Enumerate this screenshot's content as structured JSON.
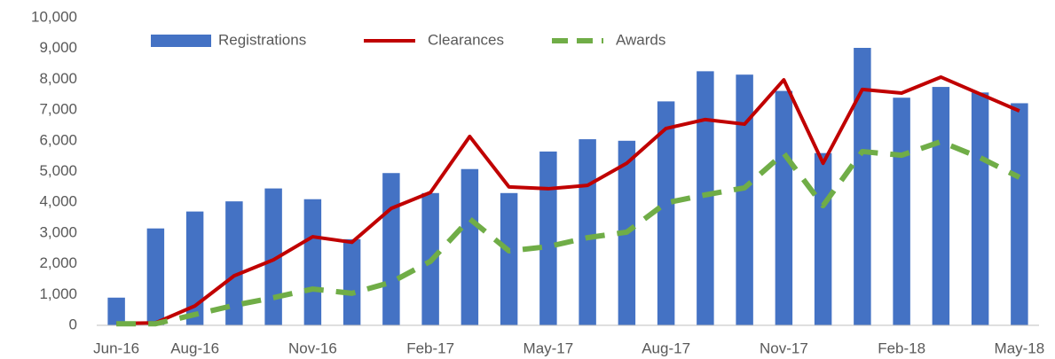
{
  "chart_data": {
    "type": "bar_line",
    "categories": [
      "Jun-16",
      null,
      "Aug-16",
      null,
      null,
      "Nov-16",
      null,
      null,
      "Feb-17",
      null,
      null,
      "May-17",
      null,
      null,
      "Aug-17",
      null,
      null,
      "Nov-17",
      null,
      null,
      "Feb-18",
      null,
      null,
      "May-18"
    ],
    "series": [
      {
        "name": "Registrations",
        "type": "bar",
        "color": "#4472c4",
        "values": [
          900,
          3150,
          3700,
          4030,
          4450,
          4100,
          2800,
          4950,
          4300,
          5080,
          4300,
          5650,
          6050,
          6000,
          7280,
          8260,
          8150,
          7620,
          5600,
          9020,
          7400,
          7750,
          7570,
          7220
        ]
      },
      {
        "name": "Clearances",
        "type": "line",
        "color": "#c00000",
        "values": [
          60,
          80,
          630,
          1610,
          2130,
          2880,
          2700,
          3800,
          4320,
          6140,
          4500,
          4440,
          4550,
          5270,
          6400,
          6690,
          6540,
          7980,
          5270,
          7670,
          7550,
          8070,
          7520,
          6970
        ]
      },
      {
        "name": "Awards",
        "type": "dashed-line",
        "color": "#70ad47",
        "values": [
          50,
          50,
          350,
          650,
          900,
          1180,
          1040,
          1400,
          2080,
          3460,
          2420,
          2560,
          2850,
          3030,
          3980,
          4240,
          4470,
          5590,
          3890,
          5650,
          5530,
          5970,
          5450,
          4810
        ]
      }
    ],
    "ylim": [
      0,
      10000
    ],
    "yticks": [
      0,
      {
        "value": 1000,
        "label": "1,000"
      },
      {
        "value": 2000,
        "label": "2,000"
      },
      {
        "value": 3000,
        "label": "3,000"
      },
      {
        "value": 4000,
        "label": "4,000"
      },
      {
        "value": 5000,
        "label": "5,000"
      },
      {
        "value": 6000,
        "label": "6,000"
      },
      {
        "value": 7000,
        "label": "7,000"
      },
      {
        "value": 8000,
        "label": "8,000"
      },
      {
        "value": 9000,
        "label": "9,000"
      },
      {
        "value": 10000,
        "label": "10,000"
      }
    ],
    "grid": false,
    "legend": "top"
  }
}
